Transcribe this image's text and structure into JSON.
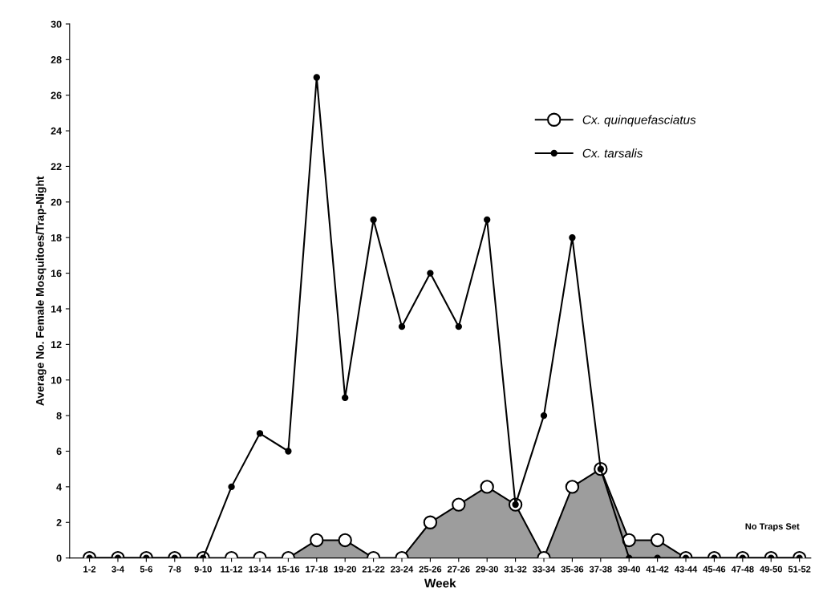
{
  "chart_data": {
    "type": "line",
    "xlabel": "Week",
    "ylabel": "Average No. Female Mosquitoes/Trap-Night",
    "categories": [
      "1-2",
      "3-4",
      "5-6",
      "7-8",
      "9-10",
      "11-12",
      "13-14",
      "15-16",
      "17-18",
      "19-20",
      "21-22",
      "23-24",
      "25-26",
      "27-26",
      "29-30",
      "31-32",
      "33-34",
      "35-36",
      "37-38",
      "39-40",
      "41-42",
      "43-44",
      "45-46",
      "47-48",
      "49-50",
      "51-52"
    ],
    "series": [
      {
        "name": "Cx. quinquefasciatus",
        "type": "area",
        "color": "#8c8c8c",
        "marker": "circle",
        "values": [
          0,
          0,
          0,
          0,
          0,
          0,
          0,
          0,
          1,
          1,
          0,
          0,
          2,
          3,
          4,
          3,
          0,
          4,
          5,
          1,
          1,
          0,
          0,
          0,
          0,
          0
        ]
      },
      {
        "name": "Cx. tarsalis",
        "color": "#000000",
        "marker": "circle",
        "values": [
          0,
          0,
          0,
          0,
          0,
          4,
          7,
          6,
          27,
          9,
          19,
          13,
          16,
          13,
          19,
          3,
          8,
          18,
          5,
          0,
          0,
          0,
          0,
          0,
          0,
          0
        ]
      }
    ],
    "ylim": [
      0,
      30
    ],
    "yticks": [
      0,
      2,
      4,
      6,
      8,
      10,
      12,
      14,
      16,
      18,
      20,
      22,
      24,
      26,
      28,
      30
    ],
    "grid": false,
    "legend": "top right",
    "line_style": "solid",
    "annotations": [
      "No Traps Set"
    ]
  }
}
